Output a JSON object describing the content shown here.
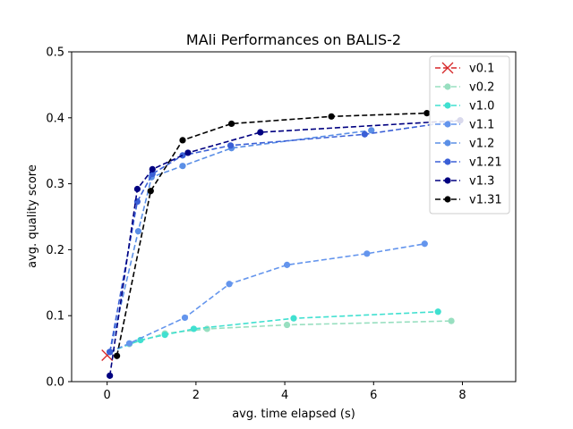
{
  "chart_data": {
    "type": "line",
    "title": "MAli Performances on BALIS-2",
    "xlabel": "avg. time elapsed (s)",
    "ylabel": "avg. quality score",
    "xlim": [
      -0.8,
      9.2
    ],
    "ylim": [
      0.0,
      0.5
    ],
    "xticks": [
      0,
      2,
      4,
      6,
      8
    ],
    "yticks": [
      0.0,
      0.1,
      0.2,
      0.3,
      0.4,
      0.5
    ],
    "xtick_labels": [
      "0",
      "2",
      "4",
      "6",
      "8"
    ],
    "ytick_labels": [
      "0.0",
      "0.1",
      "0.2",
      "0.3",
      "0.4",
      "0.5"
    ],
    "grid": false,
    "legend_position": "top-right",
    "series": [
      {
        "name": "v0.1",
        "color": "#d62728",
        "marker": "x",
        "points": [
          [
            0.0,
            0.04
          ]
        ]
      },
      {
        "name": "v0.2",
        "color": "#98dfc0",
        "marker": "o",
        "points": [
          [
            0.06,
            0.045
          ],
          [
            0.5,
            0.057
          ],
          [
            1.3,
            0.073
          ],
          [
            2.25,
            0.08
          ],
          [
            4.05,
            0.086
          ],
          [
            7.75,
            0.092
          ]
        ]
      },
      {
        "name": "v1.0",
        "color": "#40e0d0",
        "marker": "o",
        "points": [
          [
            0.06,
            0.045
          ],
          [
            0.75,
            0.063
          ],
          [
            1.3,
            0.071
          ],
          [
            1.95,
            0.08
          ],
          [
            4.2,
            0.096
          ],
          [
            7.45,
            0.106
          ]
        ]
      },
      {
        "name": "v1.1",
        "color": "#6495ed",
        "marker": "o",
        "points": [
          [
            0.06,
            0.045
          ],
          [
            0.5,
            0.058
          ],
          [
            1.75,
            0.097
          ],
          [
            2.75,
            0.148
          ],
          [
            4.05,
            0.177
          ],
          [
            5.85,
            0.194
          ],
          [
            7.15,
            0.209
          ]
        ]
      },
      {
        "name": "v1.2",
        "color": "#5b8fe6",
        "marker": "o",
        "points": [
          [
            0.06,
            0.045
          ],
          [
            0.7,
            0.228
          ],
          [
            1.0,
            0.31
          ],
          [
            1.7,
            0.327
          ],
          [
            2.8,
            0.354
          ],
          [
            5.95,
            0.381
          ]
        ]
      },
      {
        "name": "v1.21",
        "color": "#3a5fd6",
        "marker": "o",
        "points": [
          [
            0.06,
            0.045
          ],
          [
            0.68,
            0.273
          ],
          [
            1.02,
            0.315
          ],
          [
            1.7,
            0.343
          ],
          [
            2.78,
            0.358
          ],
          [
            5.8,
            0.375
          ],
          [
            7.95,
            0.396
          ]
        ]
      },
      {
        "name": "v1.3",
        "color": "#000080",
        "marker": "o",
        "points": [
          [
            0.06,
            0.009
          ],
          [
            0.68,
            0.292
          ],
          [
            1.02,
            0.322
          ],
          [
            1.82,
            0.347
          ],
          [
            3.45,
            0.378
          ],
          [
            7.95,
            0.396
          ]
        ]
      },
      {
        "name": "v1.31",
        "color": "#000000",
        "marker": "o",
        "points": [
          [
            0.22,
            0.039
          ],
          [
            0.98,
            0.289
          ],
          [
            1.7,
            0.366
          ],
          [
            2.8,
            0.391
          ],
          [
            5.05,
            0.402
          ],
          [
            7.2,
            0.407
          ]
        ]
      }
    ]
  }
}
